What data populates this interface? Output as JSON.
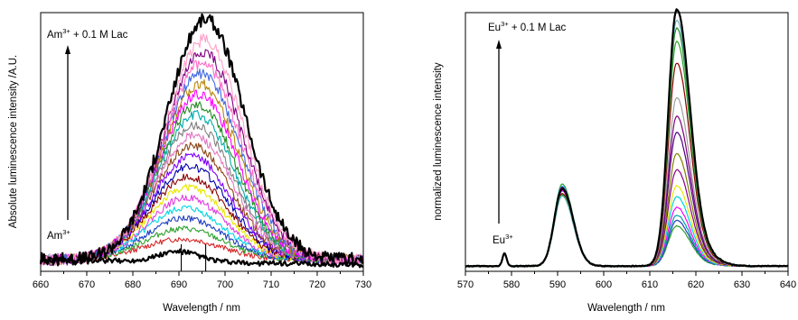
{
  "chart_data": [
    {
      "type": "line",
      "title": "",
      "xlabel": "Wavelength / nm",
      "ylabel": "Absolute luminescence intensity /A.U.",
      "xlim": [
        660,
        730
      ],
      "xticks": [
        660,
        670,
        680,
        690,
        700,
        710,
        720,
        730
      ],
      "y_ticks_shown": false,
      "grid": false,
      "annotation_top": {
        "base": "Am",
        "sup": "3+",
        "rest": " + 0.1 M Lac"
      },
      "annotation_bottom": {
        "base": "Am",
        "sup": "3+"
      },
      "arrow_direction": "up",
      "markers_x": [
        690.5,
        695.8
      ],
      "peak_position_start": 690.5,
      "peak_position_end": 695.8,
      "peak_width": 12.5,
      "baseline": 0.045,
      "amplitudes": [
        0.04,
        0.08,
        0.12,
        0.16,
        0.2,
        0.24,
        0.28,
        0.32,
        0.36,
        0.4,
        0.44,
        0.48,
        0.52,
        0.56,
        0.6,
        0.64,
        0.68,
        0.72,
        0.76,
        0.8,
        0.85,
        0.93
      ],
      "series_colors": [
        "#000000",
        "#d62728",
        "#2ca02c",
        "#1f3fbf",
        "#00d5e5",
        "#e040e0",
        "#e8e800",
        "#8b0000",
        "#0000aa",
        "#7f00ff",
        "#8b4513",
        "#e377c2",
        "#808080",
        "#00aaaa",
        "#228b22",
        "#ff00ff",
        "#b8860b",
        "#4169e1",
        "#ff6ec7",
        "#800080",
        "#ffa0c8",
        "#000000"
      ]
    },
    {
      "type": "line",
      "title": "",
      "xlabel": "Wavelength / nm",
      "ylabel": "normalized luminescence intensity",
      "xlim": [
        570,
        640
      ],
      "xticks": [
        570,
        580,
        590,
        600,
        610,
        620,
        630,
        640
      ],
      "y_ticks_shown": false,
      "grid": false,
      "annotation_top": {
        "base": "Eu",
        "sup": "3+",
        "rest": " + 0.1 M Lac"
      },
      "annotation_bottom": {
        "base": "Eu",
        "sup": "3+"
      },
      "arrow_direction": "up",
      "peaks": [
        {
          "center": 578.5,
          "width": 0.45,
          "height": 0.05
        },
        {
          "center": 591.0,
          "width": 1.9,
          "height": 0.3
        },
        {
          "center": 615.8,
          "width": 2.1,
          "height_min": 0.15,
          "height_max": 0.96
        }
      ],
      "levels_615": [
        0.15,
        0.17,
        0.19,
        0.22,
        0.26,
        0.3,
        0.36,
        0.42,
        0.5,
        0.56,
        0.63,
        0.76,
        0.84,
        0.89,
        0.92,
        0.96
      ],
      "series_colors": [
        "#2ca02c",
        "#1f3fbf",
        "#00a0a0",
        "#ff00ff",
        "#00d5e5",
        "#e8e800",
        "#8b008b",
        "#808000",
        "#4b0082",
        "#800080",
        "#a0a0a0",
        "#8b0000",
        "#2ca02c",
        "#228b22",
        "#5fb0c0",
        "#000000"
      ]
    }
  ]
}
